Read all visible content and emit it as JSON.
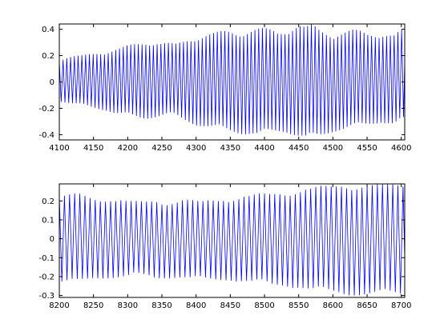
{
  "chart_data": [
    {
      "type": "line",
      "title": "",
      "xlabel": "",
      "ylabel": "",
      "xlim": [
        4100,
        4605
      ],
      "ylim": [
        -0.44,
        0.44
      ],
      "xticks": [
        4100,
        4150,
        4200,
        4250,
        4300,
        4350,
        4400,
        4450,
        4500,
        4550,
        4600
      ],
      "yticks": [
        0.4,
        0.2,
        0,
        -0.2,
        -0.4
      ],
      "xtick_labels": [
        "4100",
        "4150",
        "4200",
        "4250",
        "4300",
        "4350",
        "4400",
        "4450",
        "4500",
        "4550",
        "4600"
      ],
      "ytick_labels": [
        "0.4",
        "0.2",
        "0",
        "-0.2",
        "-0.4"
      ],
      "grid": false,
      "series": [
        {
          "color": "#0000ff",
          "x": [
            4100,
            4110,
            4120,
            4130,
            4140,
            4150,
            4160,
            4170,
            4180,
            4190,
            4200,
            4210,
            4220,
            4230,
            4240,
            4250,
            4260,
            4270,
            4280,
            4290,
            4300,
            4310,
            4320,
            4330,
            4340,
            4350,
            4360,
            4370,
            4380,
            4390,
            4400,
            4410,
            4420,
            4430,
            4440,
            4450,
            4460,
            4470,
            4480,
            4490,
            4500,
            4510,
            4520,
            4530,
            4540,
            4550,
            4560,
            4570,
            4580,
            4590,
            4600
          ],
          "upper_envelope": [
            0.18,
            0.19,
            0.2,
            0.2,
            0.21,
            0.22,
            0.23,
            0.24,
            0.25,
            0.26,
            0.28,
            0.29,
            0.3,
            0.31,
            0.31,
            0.3,
            0.3,
            0.29,
            0.31,
            0.33,
            0.35,
            0.36,
            0.37,
            0.38,
            0.39,
            0.39,
            0.38,
            0.39,
            0.4,
            0.41,
            0.41,
            0.4,
            0.38,
            0.4,
            0.42,
            0.44,
            0.42,
            0.44,
            0.4,
            0.38,
            0.37,
            0.38,
            0.39,
            0.4,
            0.39,
            0.37,
            0.37,
            0.38,
            0.37,
            0.36,
            0.4
          ],
          "lower_envelope": [
            -0.15,
            -0.16,
            -0.17,
            -0.18,
            -0.19,
            -0.2,
            -0.21,
            -0.22,
            -0.24,
            -0.25,
            -0.26,
            -0.27,
            -0.28,
            -0.28,
            -0.27,
            -0.26,
            -0.25,
            -0.27,
            -0.29,
            -0.31,
            -0.33,
            -0.34,
            -0.35,
            -0.36,
            -0.37,
            -0.38,
            -0.39,
            -0.4,
            -0.4,
            -0.41,
            -0.4,
            -0.39,
            -0.38,
            -0.38,
            -0.4,
            -0.42,
            -0.44,
            -0.43,
            -0.42,
            -0.4,
            -0.38,
            -0.37,
            -0.36,
            -0.35,
            -0.34,
            -0.33,
            -0.32,
            -0.31,
            -0.32,
            -0.33,
            -0.3
          ],
          "period": 5.5
        }
      ]
    },
    {
      "type": "line",
      "title": "",
      "xlabel": "",
      "ylabel": "",
      "xlim": [
        8200,
        8705
      ],
      "ylim": [
        -0.31,
        0.29
      ],
      "xticks": [
        8200,
        8250,
        8300,
        8350,
        8400,
        8450,
        8500,
        8550,
        8600,
        8650,
        8700
      ],
      "yticks": [
        0.2,
        0.1,
        0,
        -0.1,
        -0.2,
        -0.3
      ],
      "xtick_labels": [
        "8200",
        "8250",
        "8300",
        "8350",
        "8400",
        "8450",
        "8500",
        "8550",
        "8600",
        "8650",
        "8700"
      ],
      "ytick_labels": [
        "0.2",
        "0.1",
        "0",
        "-0.1",
        "-0.2",
        "-0.3"
      ],
      "grid": false,
      "series": [
        {
          "color": "#0000ff",
          "x": [
            8200,
            8210,
            8220,
            8230,
            8240,
            8250,
            8260,
            8270,
            8280,
            8290,
            8300,
            8310,
            8320,
            8330,
            8340,
            8350,
            8360,
            8370,
            8380,
            8390,
            8400,
            8410,
            8420,
            8430,
            8440,
            8450,
            8460,
            8470,
            8480,
            8490,
            8500,
            8510,
            8520,
            8530,
            8540,
            8550,
            8560,
            8570,
            8580,
            8590,
            8600,
            8610,
            8620,
            8630,
            8640,
            8650,
            8660,
            8670,
            8680,
            8690,
            8700
          ],
          "upper_envelope": [
            0.23,
            0.23,
            0.24,
            0.24,
            0.23,
            0.22,
            0.22,
            0.22,
            0.21,
            0.21,
            0.2,
            0.2,
            0.2,
            0.2,
            0.21,
            0.2,
            0.2,
            0.2,
            0.21,
            0.21,
            0.2,
            0.2,
            0.21,
            0.21,
            0.22,
            0.22,
            0.22,
            0.23,
            0.23,
            0.24,
            0.24,
            0.24,
            0.25,
            0.25,
            0.26,
            0.26,
            0.27,
            0.27,
            0.28,
            0.28,
            0.28,
            0.29,
            0.29,
            0.29,
            0.29,
            0.29,
            0.29,
            0.29,
            0.29,
            0.29,
            0.29
          ],
          "lower_envelope": [
            -0.24,
            -0.24,
            -0.24,
            -0.23,
            -0.22,
            -0.21,
            -0.21,
            -0.21,
            -0.21,
            -0.21,
            -0.21,
            -0.2,
            -0.2,
            -0.2,
            -0.21,
            -0.21,
            -0.21,
            -0.21,
            -0.21,
            -0.22,
            -0.22,
            -0.22,
            -0.22,
            -0.22,
            -0.22,
            -0.22,
            -0.23,
            -0.23,
            -0.24,
            -0.24,
            -0.24,
            -0.25,
            -0.25,
            -0.25,
            -0.26,
            -0.26,
            -0.27,
            -0.28,
            -0.28,
            -0.29,
            -0.29,
            -0.29,
            -0.3,
            -0.3,
            -0.3,
            -0.3,
            -0.3,
            -0.3,
            -0.3,
            -0.3,
            -0.3
          ],
          "period": 7.5
        }
      ]
    }
  ]
}
